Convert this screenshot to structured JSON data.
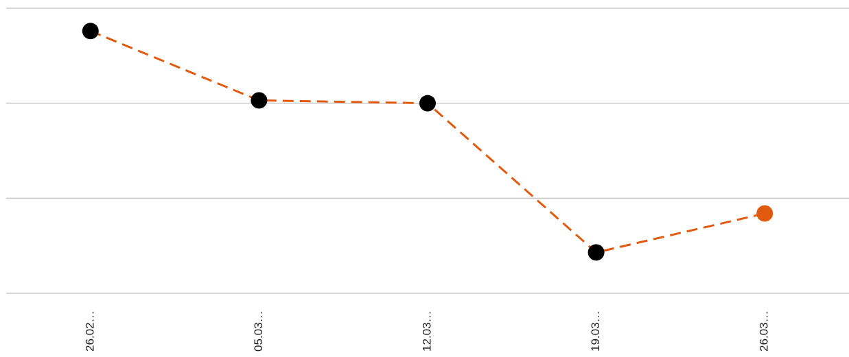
{
  "chart_data": {
    "type": "line",
    "categories": [
      "26.02…",
      "05.03…",
      "12.03…",
      "19.03…",
      "26.03…"
    ],
    "series": [
      {
        "color": "#e05a10",
        "values": [
          2.76,
          2.03,
          2.0,
          0.43,
          0.84
        ],
        "point_colors": [
          "#000000",
          "#000000",
          "#000000",
          "#000000",
          "#e05a10"
        ]
      }
    ],
    "ylim": [
      0,
      3
    ],
    "yticks": [
      0,
      1,
      2,
      3
    ],
    "grid": true
  }
}
